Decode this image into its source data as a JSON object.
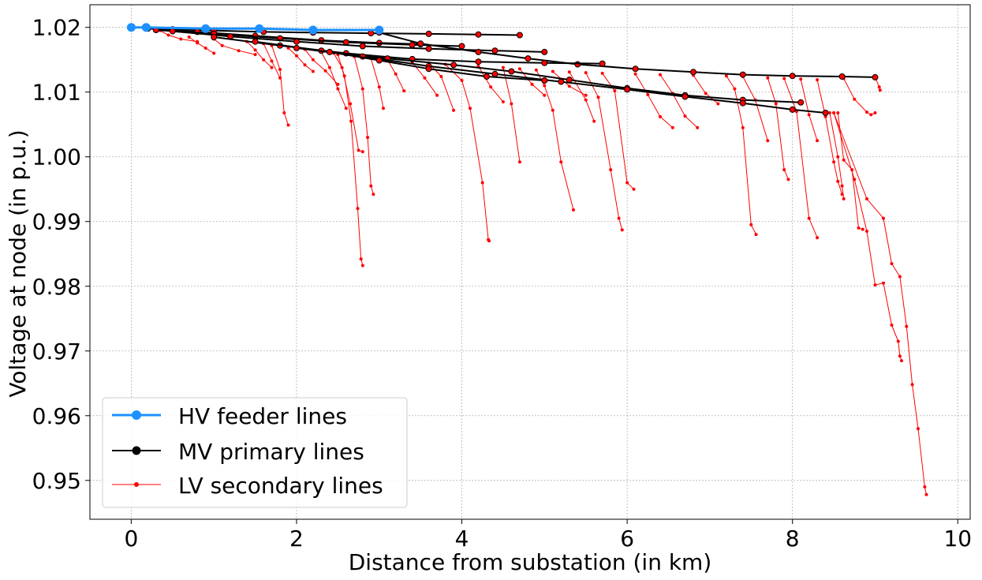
{
  "chart_data": {
    "type": "line",
    "xlabel": "Distance from substation (in km)",
    "ylabel": "Voltage at node (in p.u.)",
    "xlim": [
      -0.5,
      10.15
    ],
    "ylim": [
      0.944,
      1.0235
    ],
    "x_ticks": [
      0,
      2,
      4,
      6,
      8,
      10
    ],
    "x_tick_labels": [
      "0",
      "2",
      "4",
      "6",
      "8",
      "10"
    ],
    "y_ticks": [
      0.95,
      0.96,
      0.97,
      0.98,
      0.99,
      1.0,
      1.01,
      1.02
    ],
    "y_tick_labels": [
      "0.95",
      "0.96",
      "0.97",
      "0.98",
      "0.99",
      "1.00",
      "1.01",
      "1.02"
    ],
    "grid": true,
    "legend_position": "lower-left",
    "colors": {
      "hv": "#1e90ff",
      "mv": "#000000",
      "lv": "#ff0000",
      "node_fill": "#ff0000"
    },
    "series": [
      {
        "name": "HV feeder lines",
        "style": "thick-blue-with-large-dots",
        "segments": [
          {
            "x": [
              0,
              0.18,
              0.9,
              1.55,
              2.2,
              3.0
            ],
            "y": [
              1.02,
              1.02,
              1.0198,
              1.0198,
              1.0196,
              1.0196
            ]
          }
        ]
      },
      {
        "name": "MV primary lines",
        "style": "black-with-dots",
        "segments": [
          {
            "x": [
              0.18,
              0.5,
              1.0,
              1.6,
              2.2,
              2.9,
              3.6,
              4.2,
              4.7
            ],
            "y": [
              1.02,
              1.0197,
              1.0195,
              1.0193,
              1.0192,
              1.0191,
              1.019,
              1.0189,
              1.0188
            ]
          },
          {
            "x": [
              0.2,
              0.8,
              1.5,
              2.3,
              3.0,
              3.5
            ],
            "y": [
              1.0198,
              1.0193,
              1.0187,
              1.018,
              1.0176,
              1.0174
            ]
          },
          {
            "x": [
              0.3,
              1.0,
              1.8,
              2.6,
              3.4,
              4.0
            ],
            "y": [
              1.0196,
              1.019,
              1.0183,
              1.0177,
              1.0173,
              1.0171
            ]
          },
          {
            "x": [
              0.5,
              1.2,
              2.0,
              2.8,
              3.6,
              4.4,
              5.0
            ],
            "y": [
              1.0194,
              1.0186,
              1.0178,
              1.0171,
              1.0167,
              1.0164,
              1.0162
            ]
          },
          {
            "x": [
              3.0,
              3.5,
              4.2,
              4.8,
              5.4,
              6.1,
              6.8,
              7.4,
              8.0,
              8.6,
              9.0
            ],
            "y": [
              1.0192,
              1.0175,
              1.0162,
              1.0152,
              1.0143,
              1.0136,
              1.0131,
              1.0127,
              1.0125,
              1.0124,
              1.0123
            ]
          },
          {
            "x": [
              1.0,
              1.8,
              2.6,
              3.4,
              4.2,
              5.0,
              5.7
            ],
            "y": [
              1.0185,
              1.0172,
              1.016,
              1.0151,
              1.0147,
              1.0145,
              1.0144
            ]
          },
          {
            "x": [
              1.5,
              2.3,
              3.1,
              3.9,
              4.6,
              5.3,
              6.0,
              6.7,
              7.4,
              8.1
            ],
            "y": [
              1.0178,
              1.0164,
              1.0152,
              1.0142,
              1.0132,
              1.0119,
              1.0106,
              1.0095,
              1.0088,
              1.0084
            ]
          },
          {
            "x": [
              2.0,
              2.8,
              3.6,
              4.4,
              5.2,
              6.0,
              6.7,
              7.4,
              8.0,
              8.4
            ],
            "y": [
              1.0168,
              1.0155,
              1.014,
              1.0128,
              1.0116,
              1.0104,
              1.0093,
              1.0083,
              1.0073,
              1.0068
            ]
          },
          {
            "x": [
              2.4,
              3.0,
              3.6,
              4.3,
              5.0
            ],
            "y": [
              1.0162,
              1.0149,
              1.0136,
              1.0124,
              1.0118
            ]
          }
        ]
      },
      {
        "name": "LV secondary lines",
        "style": "thin-red-with-small-dots",
        "segments": [
          {
            "x": [
              0.35,
              0.45,
              0.6,
              0.8
            ],
            "y": [
              1.0195,
              1.0188,
              1.0182,
              1.0178
            ]
          },
          {
            "x": [
              0.7,
              0.8,
              0.9,
              1.0
            ],
            "y": [
              1.0185,
              1.0176,
              1.0168,
              1.016
            ]
          },
          {
            "x": [
              1.0,
              1.1,
              1.3,
              1.5
            ],
            "y": [
              1.0182,
              1.0172,
              1.0164,
              1.0158
            ]
          },
          {
            "x": [
              1.4,
              1.5,
              1.6,
              1.7
            ],
            "y": [
              1.0178,
              1.0165,
              1.015,
              1.0138
            ]
          },
          {
            "x": [
              1.6,
              1.7,
              1.8
            ],
            "y": [
              1.0175,
              1.0148,
              1.0122
            ]
          },
          {
            "x": [
              1.7,
              1.8,
              1.85,
              1.9
            ],
            "y": [
              1.0172,
              1.0135,
              1.0068,
              1.0049
            ]
          },
          {
            "x": [
              1.9,
              2.0,
              2.1,
              2.2
            ],
            "y": [
              1.0168,
              1.0156,
              1.0142,
              1.0132
            ]
          },
          {
            "x": [
              2.1,
              2.2,
              2.35,
              2.5
            ],
            "y": [
              1.0166,
              1.015,
              1.0133,
              1.0112
            ]
          },
          {
            "x": [
              2.3,
              2.4,
              2.5,
              2.6
            ],
            "y": [
              1.0162,
              1.0138,
              1.0105,
              1.0075
            ]
          },
          {
            "x": [
              2.45,
              2.55,
              2.65,
              2.75,
              2.8
            ],
            "y": [
              1.016,
              1.0138,
              1.0082,
              1.001,
              1.0008
            ]
          },
          {
            "x": [
              2.5,
              2.58,
              2.66,
              2.74,
              2.78,
              2.8
            ],
            "y": [
              1.0158,
              1.0125,
              1.0055,
              0.992,
              0.9842,
              0.9832
            ]
          },
          {
            "x": [
              2.7,
              2.8,
              2.86,
              2.9,
              2.93
            ],
            "y": [
              1.0155,
              1.0105,
              1.003,
              0.9955,
              0.9942
            ]
          },
          {
            "x": [
              2.9,
              3.0,
              3.05
            ],
            "y": [
              1.0152,
              1.0108,
              1.0075
            ]
          },
          {
            "x": [
              3.1,
              3.2,
              3.3
            ],
            "y": [
              1.015,
              1.0128,
              1.0102
            ]
          },
          {
            "x": [
              3.4,
              3.55,
              3.7
            ],
            "y": [
              1.0146,
              1.0122,
              1.0095
            ]
          },
          {
            "x": [
              3.6,
              3.75,
              3.9
            ],
            "y": [
              1.0145,
              1.0124,
              1.0072
            ]
          },
          {
            "x": [
              3.8,
              4.0,
              4.1,
              4.25,
              4.32,
              4.33
            ],
            "y": [
              1.0143,
              1.0118,
              1.0075,
              0.996,
              0.9872,
              0.987
            ]
          },
          {
            "x": [
              4.2,
              4.35,
              4.5
            ],
            "y": [
              1.014,
              1.0108,
              1.0085
            ]
          },
          {
            "x": [
              4.5,
              4.6,
              4.7
            ],
            "y": [
              1.0138,
              1.0082,
              0.9992
            ]
          },
          {
            "x": [
              4.7,
              4.85,
              5.0
            ],
            "y": [
              1.0136,
              1.0112,
              1.0095
            ]
          },
          {
            "x": [
              4.9,
              5.0,
              5.1,
              5.2,
              5.35
            ],
            "y": [
              1.0134,
              1.011,
              1.0072,
              0.9992,
              0.9918
            ]
          },
          {
            "x": [
              5.1,
              5.3,
              5.5
            ],
            "y": [
              1.0132,
              1.0109,
              1.0095
            ]
          },
          {
            "x": [
              5.3,
              5.5,
              5.6
            ],
            "y": [
              1.0131,
              1.0088,
              1.0055
            ]
          },
          {
            "x": [
              5.5,
              5.65,
              5.8,
              5.9,
              5.94
            ],
            "y": [
              1.013,
              1.0092,
              0.998,
              0.9905,
              0.9887
            ]
          },
          {
            "x": [
              5.7,
              5.85,
              6.0,
              6.08
            ],
            "y": [
              1.0129,
              1.0102,
              0.996,
              0.995
            ]
          },
          {
            "x": [
              6.1,
              6.25,
              6.4,
              6.55
            ],
            "y": [
              1.0128,
              1.0096,
              1.0062,
              1.0045
            ]
          },
          {
            "x": [
              6.4,
              6.55,
              6.7,
              6.85
            ],
            "y": [
              1.0127,
              1.0098,
              1.0063,
              1.0045
            ]
          },
          {
            "x": [
              6.8,
              6.95,
              7.1
            ],
            "y": [
              1.0126,
              1.0098,
              1.0082
            ]
          },
          {
            "x": [
              7.2,
              7.3,
              7.4,
              7.5,
              7.56
            ],
            "y": [
              1.0125,
              1.0105,
              1.0045,
              0.9895,
              0.988
            ]
          },
          {
            "x": [
              7.4,
              7.55,
              7.7
            ],
            "y": [
              1.0124,
              1.0088,
              1.0025
            ]
          },
          {
            "x": [
              7.7,
              7.8,
              7.9,
              7.95
            ],
            "y": [
              1.0122,
              1.0082,
              0.998,
              0.9965
            ]
          },
          {
            "x": [
              7.9,
              8.05,
              8.2,
              8.3
            ],
            "y": [
              1.0121,
              1.007,
              0.9905,
              0.9875
            ]
          },
          {
            "x": [
              8.1,
              8.2,
              8.3
            ],
            "y": [
              1.012,
              1.0065,
              1.0025
            ]
          },
          {
            "x": [
              8.3,
              8.4,
              8.5,
              8.55,
              8.6
            ],
            "y": [
              1.0119,
              1.0062,
              0.9992,
              0.9962,
              0.9942
            ]
          },
          {
            "x": [
              8.45,
              8.55,
              8.6,
              8.62
            ],
            "y": [
              1.0068,
              1.0,
              0.9955,
              0.9935
            ]
          },
          {
            "x": [
              8.55,
              8.62,
              8.72,
              8.8,
              8.85
            ],
            "y": [
              1.0068,
              0.9995,
              0.998,
              0.989,
              0.9888
            ]
          },
          {
            "x": [
              8.62,
              8.75,
              8.9,
              8.95,
              9.0
            ],
            "y": [
              1.0121,
              1.0089,
              1.0069,
              1.0065,
              1.0068
            ]
          },
          {
            "x": [
              8.5,
              8.75,
              8.9,
              9.0,
              9.1,
              9.2,
              9.28,
              9.3,
              9.32
            ],
            "y": [
              1.0068,
              0.9965,
              0.9885,
              0.9802,
              0.9805,
              0.974,
              0.9715,
              0.9692,
              0.9685
            ]
          },
          {
            "x": [
              8.5,
              8.9,
              9.1,
              9.2,
              9.3,
              9.38,
              9.45,
              9.52,
              9.6,
              9.62
            ],
            "y": [
              1.0068,
              0.9935,
              0.9905,
              0.9835,
              0.9815,
              0.9738,
              0.9648,
              0.958,
              0.949,
              0.9478
            ]
          },
          {
            "x": [
              9.0,
              9.05,
              9.06
            ],
            "y": [
              1.0123,
              1.0108,
              1.0103
            ]
          }
        ]
      }
    ]
  }
}
